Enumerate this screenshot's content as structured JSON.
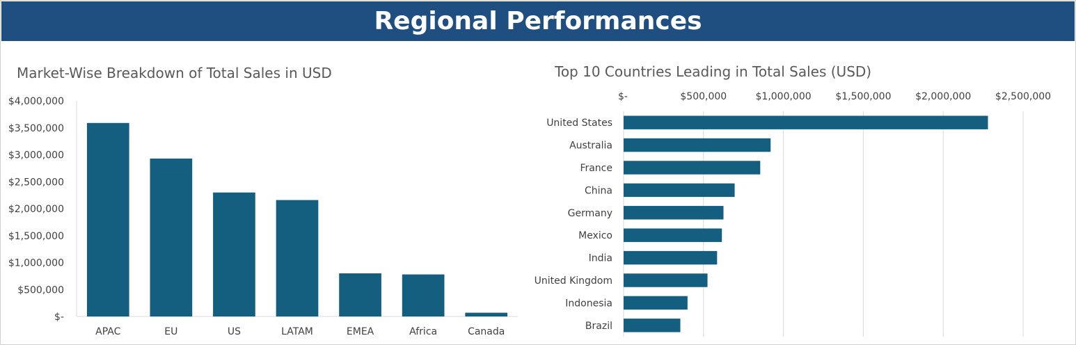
{
  "header": {
    "title": "Regional Performances"
  },
  "colors": {
    "banner": "#1f4e80",
    "bar": "#145e80",
    "grid": "#d9d9d9"
  },
  "chart_data": [
    {
      "type": "bar",
      "title": "Market-Wise Breakdown of Total Sales in USD",
      "categories": [
        "APAC",
        "EU",
        "US",
        "LATAM",
        "EMEA",
        "Africa",
        "Canada"
      ],
      "values": [
        3590000,
        2930000,
        2300000,
        2160000,
        800000,
        780000,
        70000
      ],
      "ylim": [
        0,
        4000000
      ],
      "yticks": [
        0,
        500000,
        1000000,
        1500000,
        2000000,
        2500000,
        3000000,
        3500000,
        4000000
      ],
      "ytick_labels": [
        "$-",
        "$500,000",
        "$1,000,000",
        "$1,500,000",
        "$2,000,000",
        "$2,500,000",
        "$3,000,000",
        "$3,500,000",
        "$4,000,000"
      ],
      "grid": false,
      "legend": "none"
    },
    {
      "type": "bar",
      "orientation": "horizontal",
      "title": "Top 10 Countries Leading in Total Sales (USD)",
      "categories": [
        "United States",
        "Australia",
        "France",
        "China",
        "Germany",
        "Mexico",
        "India",
        "United Kingdom",
        "Indonesia",
        "Brazil"
      ],
      "values": [
        2280000,
        920000,
        855000,
        695000,
        625000,
        615000,
        585000,
        525000,
        400000,
        355000
      ],
      "xlim": [
        0,
        2500000
      ],
      "xticks": [
        0,
        500000,
        1000000,
        1500000,
        2000000,
        2500000
      ],
      "xtick_labels": [
        "$-",
        "$500,000",
        "$1,000,000",
        "$1,500,000",
        "$2,000,000",
        "$2,500,000"
      ],
      "x_axis_position": "top",
      "grid": true,
      "legend": "none"
    }
  ]
}
